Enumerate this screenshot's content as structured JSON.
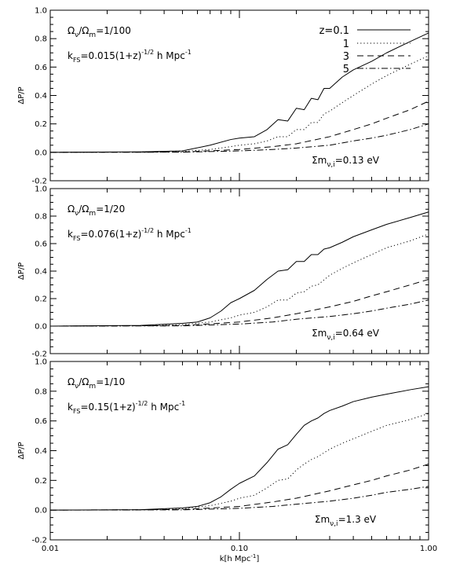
{
  "chart_data": {
    "type": "line",
    "xlabel_parts": [
      "k[h Mpc",
      "-1",
      "]"
    ],
    "ylabel": "ΔP/P",
    "xscale": "log",
    "xlim": [
      0.01,
      1.0
    ],
    "ylim": [
      -0.2,
      1.0
    ],
    "xticks": [
      {
        "value": 0.01,
        "label": "0.01"
      },
      {
        "value": 0.1,
        "label": "0.10"
      },
      {
        "value": 1.0,
        "label": "1.00"
      }
    ],
    "yticks": [
      {
        "value": -0.2,
        "label": "-0.2"
      },
      {
        "value": 0.0,
        "label": "0.0"
      },
      {
        "value": 0.2,
        "label": "0.2"
      },
      {
        "value": 0.4,
        "label": "0.4"
      },
      {
        "value": 0.6,
        "label": "0.6"
      },
      {
        "value": 0.8,
        "label": "0.8"
      },
      {
        "value": 1.0,
        "label": "1.0"
      }
    ],
    "legend": {
      "placement": "top-right",
      "entries": [
        {
          "label": "z=0.1",
          "style": "solid"
        },
        {
          "label": "1",
          "style": "dotted"
        },
        {
          "label": "3",
          "style": "dashed"
        },
        {
          "label": "5",
          "style": "dashdot"
        }
      ]
    },
    "panels": [
      {
        "omega": {
          "a": "Ω",
          "a_sub": "ν",
          "b": "/Ω",
          "b_sub": "m",
          "c": "=1/100"
        },
        "kfs": {
          "k": "k",
          "sub": "FS",
          "text": "=0.015(1+z)",
          "sup": "-1/2",
          "unit": " h Mpc",
          "unit_sup": "-1"
        },
        "mass": {
          "sigma": "Σm",
          "sub": "ν,i",
          "value": "=0.13 eV"
        },
        "series": [
          {
            "style": "solid",
            "x": [
              0.01,
              0.03,
              0.05,
              0.07,
              0.09,
              0.1,
              0.12,
              0.14,
              0.16,
              0.18,
              0.2,
              0.22,
              0.24,
              0.26,
              0.28,
              0.3,
              0.35,
              0.4,
              0.5,
              0.6,
              0.8,
              1.0
            ],
            "y": [
              0,
              0.003,
              0.01,
              0.05,
              0.09,
              0.1,
              0.11,
              0.16,
              0.23,
              0.22,
              0.31,
              0.3,
              0.38,
              0.37,
              0.45,
              0.45,
              0.53,
              0.58,
              0.64,
              0.7,
              0.78,
              0.84
            ]
          },
          {
            "style": "dotted",
            "x": [
              0.01,
              0.03,
              0.05,
              0.07,
              0.09,
              0.1,
              0.12,
              0.14,
              0.16,
              0.18,
              0.2,
              0.22,
              0.24,
              0.26,
              0.28,
              0.3,
              0.35,
              0.4,
              0.5,
              0.6,
              0.8,
              1.0
            ],
            "y": [
              0,
              0.002,
              0.006,
              0.02,
              0.04,
              0.05,
              0.06,
              0.08,
              0.11,
              0.11,
              0.16,
              0.16,
              0.21,
              0.21,
              0.27,
              0.29,
              0.35,
              0.4,
              0.48,
              0.54,
              0.62,
              0.68
            ]
          },
          {
            "style": "dashed",
            "x": [
              0.01,
              0.05,
              0.1,
              0.15,
              0.2,
              0.3,
              0.4,
              0.5,
              0.6,
              0.8,
              1.0
            ],
            "y": [
              0,
              0.002,
              0.02,
              0.04,
              0.06,
              0.11,
              0.16,
              0.2,
              0.24,
              0.3,
              0.36
            ]
          },
          {
            "style": "dashdot",
            "x": [
              0.01,
              0.05,
              0.1,
              0.15,
              0.2,
              0.3,
              0.4,
              0.5,
              0.6,
              0.8,
              1.0
            ],
            "y": [
              0,
              0.001,
              0.01,
              0.02,
              0.03,
              0.05,
              0.08,
              0.1,
              0.12,
              0.16,
              0.2
            ]
          }
        ]
      },
      {
        "omega": {
          "a": "Ω",
          "a_sub": "ν",
          "b": "/Ω",
          "b_sub": "m",
          "c": "=1/20"
        },
        "kfs": {
          "k": "k",
          "sub": "FS",
          "text": "=0.076(1+z)",
          "sup": "-1/2",
          "unit": " h Mpc",
          "unit_sup": "-1"
        },
        "mass": {
          "sigma": "Σm",
          "sub": "ν,i",
          "value": "=0.64 eV"
        },
        "series": [
          {
            "style": "solid",
            "x": [
              0.01,
              0.03,
              0.05,
              0.06,
              0.07,
              0.08,
              0.09,
              0.1,
              0.12,
              0.14,
              0.16,
              0.18,
              0.2,
              0.22,
              0.24,
              0.26,
              0.28,
              0.3,
              0.35,
              0.4,
              0.5,
              0.6,
              0.8,
              1.0
            ],
            "y": [
              0,
              0.005,
              0.02,
              0.03,
              0.06,
              0.11,
              0.17,
              0.2,
              0.26,
              0.34,
              0.4,
              0.41,
              0.47,
              0.47,
              0.52,
              0.52,
              0.56,
              0.57,
              0.61,
              0.65,
              0.7,
              0.74,
              0.79,
              0.83
            ]
          },
          {
            "style": "dotted",
            "x": [
              0.01,
              0.03,
              0.05,
              0.07,
              0.09,
              0.1,
              0.12,
              0.14,
              0.16,
              0.18,
              0.2,
              0.22,
              0.24,
              0.26,
              0.3,
              0.35,
              0.4,
              0.5,
              0.6,
              0.8,
              1.0
            ],
            "y": [
              0,
              0.003,
              0.01,
              0.03,
              0.06,
              0.08,
              0.1,
              0.14,
              0.19,
              0.19,
              0.24,
              0.25,
              0.29,
              0.3,
              0.37,
              0.42,
              0.46,
              0.52,
              0.57,
              0.62,
              0.67
            ]
          },
          {
            "style": "dashed",
            "x": [
              0.01,
              0.05,
              0.1,
              0.15,
              0.2,
              0.3,
              0.4,
              0.5,
              0.6,
              0.8,
              1.0
            ],
            "y": [
              0,
              0.004,
              0.03,
              0.06,
              0.09,
              0.14,
              0.18,
              0.22,
              0.25,
              0.3,
              0.34
            ]
          },
          {
            "style": "dashdot",
            "x": [
              0.01,
              0.05,
              0.1,
              0.15,
              0.2,
              0.3,
              0.4,
              0.5,
              0.6,
              0.8,
              1.0
            ],
            "y": [
              0,
              0.002,
              0.015,
              0.03,
              0.05,
              0.07,
              0.09,
              0.11,
              0.13,
              0.16,
              0.19
            ]
          }
        ]
      },
      {
        "omega": {
          "a": "Ω",
          "a_sub": "ν",
          "b": "/Ω",
          "b_sub": "m",
          "c": "=1/10"
        },
        "kfs": {
          "k": "k",
          "sub": "FS",
          "text": "=0.15(1+z)",
          "sup": "-1/2",
          "unit": " h Mpc",
          "unit_sup": "-1"
        },
        "mass": {
          "sigma": "Σm",
          "sub": "ν,i",
          "value": "=1.3 eV"
        },
        "series": [
          {
            "style": "solid",
            "x": [
              0.01,
              0.03,
              0.05,
              0.06,
              0.07,
              0.08,
              0.09,
              0.1,
              0.12,
              0.14,
              0.16,
              0.18,
              0.2,
              0.22,
              0.24,
              0.26,
              0.28,
              0.3,
              0.35,
              0.4,
              0.5,
              0.6,
              0.8,
              1.0
            ],
            "y": [
              0,
              0.003,
              0.015,
              0.025,
              0.05,
              0.09,
              0.14,
              0.18,
              0.23,
              0.32,
              0.41,
              0.44,
              0.51,
              0.57,
              0.6,
              0.62,
              0.65,
              0.67,
              0.7,
              0.73,
              0.76,
              0.78,
              0.81,
              0.83
            ]
          },
          {
            "style": "dotted",
            "x": [
              0.01,
              0.03,
              0.05,
              0.07,
              0.09,
              0.1,
              0.12,
              0.14,
              0.16,
              0.18,
              0.2,
              0.22,
              0.24,
              0.26,
              0.3,
              0.35,
              0.4,
              0.5,
              0.6,
              0.8,
              1.0
            ],
            "y": [
              0,
              0.002,
              0.008,
              0.03,
              0.06,
              0.08,
              0.1,
              0.15,
              0.2,
              0.21,
              0.27,
              0.31,
              0.34,
              0.36,
              0.41,
              0.45,
              0.48,
              0.53,
              0.57,
              0.61,
              0.65
            ]
          },
          {
            "style": "dashed",
            "x": [
              0.01,
              0.05,
              0.1,
              0.15,
              0.2,
              0.3,
              0.4,
              0.5,
              0.6,
              0.8,
              1.0
            ],
            "y": [
              0,
              0.004,
              0.025,
              0.055,
              0.08,
              0.13,
              0.17,
              0.2,
              0.23,
              0.27,
              0.31
            ]
          },
          {
            "style": "dashdot",
            "x": [
              0.01,
              0.05,
              0.1,
              0.15,
              0.2,
              0.3,
              0.4,
              0.5,
              0.6,
              0.8,
              1.0
            ],
            "y": [
              0,
              0.002,
              0.012,
              0.025,
              0.04,
              0.06,
              0.08,
              0.1,
              0.12,
              0.14,
              0.16
            ]
          }
        ]
      }
    ]
  }
}
